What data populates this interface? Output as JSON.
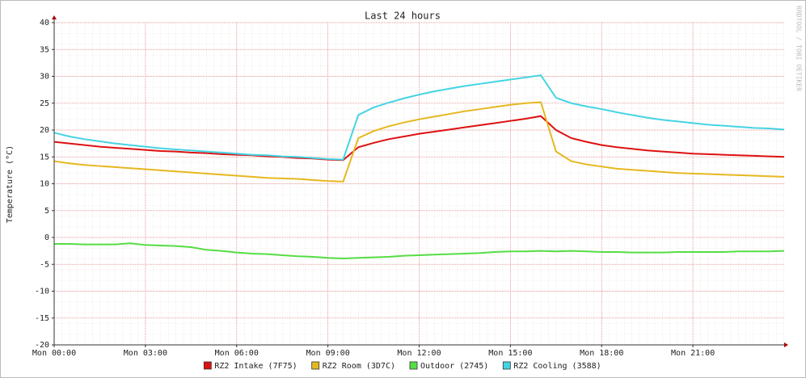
{
  "chart_data": {
    "type": "line",
    "title": "Last 24 hours",
    "y_label": "Temperature (°C)",
    "watermark": "RRDTOOL / TOBI OETIKER",
    "x": [
      0,
      0.5,
      1,
      1.5,
      2,
      2.5,
      3,
      3.5,
      4,
      4.5,
      5,
      5.5,
      6,
      6.5,
      7,
      7.5,
      8,
      8.5,
      9,
      9.5,
      10,
      10.5,
      11,
      11.5,
      12,
      12.5,
      13,
      13.5,
      14,
      14.5,
      15,
      15.5,
      16,
      16.5,
      17,
      17.5,
      18,
      18.5,
      19,
      19.5,
      20,
      20.5,
      21,
      21.5,
      22,
      22.5,
      23,
      23.5,
      24
    ],
    "xlim": [
      0,
      24
    ],
    "xticks": [
      {
        "value": 0,
        "label": "Mon 00:00"
      },
      {
        "value": 3,
        "label": "Mon 03:00"
      },
      {
        "value": 6,
        "label": "Mon 06:00"
      },
      {
        "value": 9,
        "label": "Mon 09:00"
      },
      {
        "value": 12,
        "label": "Mon 12:00"
      },
      {
        "value": 15,
        "label": "Mon 15:00"
      },
      {
        "value": 18,
        "label": "Mon 18:00"
      },
      {
        "value": 21,
        "label": "Mon 21:00"
      }
    ],
    "ylim": [
      -20,
      40
    ],
    "yticks": [
      -20,
      -15,
      -10,
      -5,
      0,
      5,
      10,
      15,
      20,
      25,
      30,
      35,
      40
    ],
    "grid": true,
    "series": [
      {
        "name": "RZ2 Intake (7F75)",
        "color": "#dd1111",
        "values": [
          17.8,
          17.5,
          17.2,
          16.9,
          16.7,
          16.5,
          16.3,
          16.1,
          16.0,
          15.8,
          15.7,
          15.5,
          15.4,
          15.3,
          15.1,
          15.0,
          14.8,
          14.7,
          14.5,
          14.4,
          16.8,
          17.6,
          18.3,
          18.8,
          19.3,
          19.7,
          20.1,
          20.5,
          20.9,
          21.3,
          21.7,
          22.1,
          22.6,
          20.0,
          18.5,
          17.8,
          17.2,
          16.8,
          16.5,
          16.2,
          16.0,
          15.8,
          15.6,
          15.5,
          15.4,
          15.3,
          15.2,
          15.1,
          15.0
        ]
      },
      {
        "name": "RZ2 Room (3D7C)",
        "color": "#e6b820",
        "values": [
          14.2,
          13.8,
          13.5,
          13.3,
          13.1,
          12.9,
          12.7,
          12.5,
          12.3,
          12.1,
          11.9,
          11.7,
          11.5,
          11.3,
          11.1,
          11.0,
          10.9,
          10.7,
          10.5,
          10.4,
          18.5,
          19.8,
          20.7,
          21.4,
          22.0,
          22.5,
          23.0,
          23.5,
          23.9,
          24.3,
          24.7,
          25.0,
          25.2,
          16.0,
          14.2,
          13.6,
          13.2,
          12.8,
          12.6,
          12.4,
          12.2,
          12.0,
          11.9,
          11.8,
          11.7,
          11.6,
          11.5,
          11.4,
          11.3
        ]
      },
      {
        "name": "Outdoor (2745)",
        "color": "#55dd44",
        "values": [
          -1.2,
          -1.2,
          -1.3,
          -1.3,
          -1.3,
          -1.1,
          -1.4,
          -1.5,
          -1.6,
          -1.8,
          -2.3,
          -2.5,
          -2.8,
          -3.0,
          -3.1,
          -3.3,
          -3.5,
          -3.6,
          -3.8,
          -3.9,
          -3.8,
          -3.7,
          -3.6,
          -3.4,
          -3.3,
          -3.2,
          -3.1,
          -3.0,
          -2.9,
          -2.7,
          -2.6,
          -2.6,
          -2.5,
          -2.6,
          -2.5,
          -2.6,
          -2.7,
          -2.7,
          -2.8,
          -2.8,
          -2.8,
          -2.7,
          -2.7,
          -2.7,
          -2.7,
          -2.6,
          -2.6,
          -2.6,
          -2.5
        ]
      },
      {
        "name": "RZ2 Cooling (3588)",
        "color": "#44d4e4",
        "values": [
          19.5,
          18.8,
          18.3,
          17.9,
          17.5,
          17.2,
          16.9,
          16.6,
          16.4,
          16.2,
          16.0,
          15.8,
          15.6,
          15.4,
          15.3,
          15.1,
          15.0,
          14.8,
          14.6,
          14.5,
          22.8,
          24.2,
          25.1,
          25.9,
          26.6,
          27.2,
          27.7,
          28.2,
          28.6,
          29.0,
          29.4,
          29.8,
          30.2,
          26.0,
          25.0,
          24.4,
          23.9,
          23.3,
          22.8,
          22.3,
          21.9,
          21.6,
          21.3,
          21.0,
          20.8,
          20.6,
          20.4,
          20.3,
          20.1
        ]
      }
    ]
  }
}
